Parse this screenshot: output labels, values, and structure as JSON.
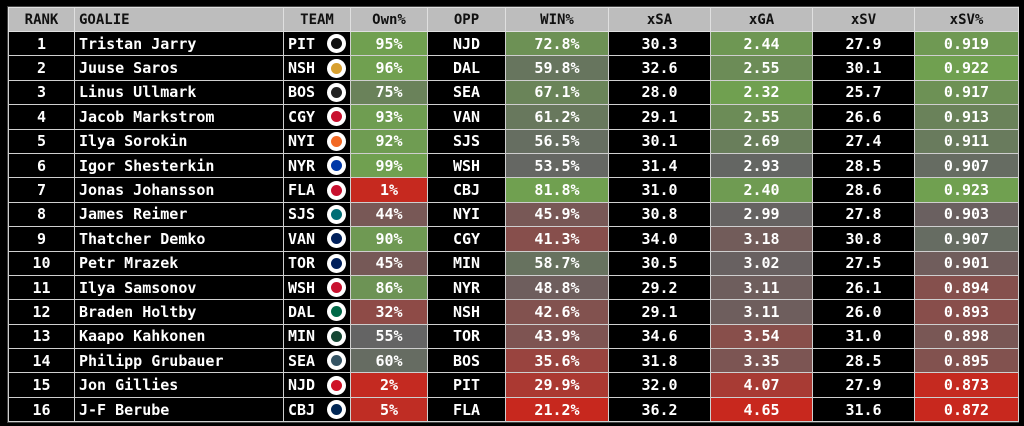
{
  "chart_data": {
    "type": "table",
    "columns": [
      "RANK",
      "GOALIE",
      "TEAM",
      "Own%",
      "OPP",
      "WIN%",
      "xSA",
      "xGA",
      "xSV",
      "xSV%"
    ],
    "rows": [
      [
        "1",
        "Tristan Jarry",
        "PIT",
        "95%",
        "NJD",
        "72.8%",
        "30.3",
        "2.44",
        "27.9",
        "0.919"
      ],
      [
        "2",
        "Juuse Saros",
        "NSH",
        "96%",
        "DAL",
        "59.8%",
        "32.6",
        "2.55",
        "30.1",
        "0.922"
      ],
      [
        "3",
        "Linus Ullmark",
        "BOS",
        "75%",
        "SEA",
        "67.1%",
        "28.0",
        "2.32",
        "25.7",
        "0.917"
      ],
      [
        "4",
        "Jacob Markstrom",
        "CGY",
        "93%",
        "VAN",
        "61.2%",
        "29.1",
        "2.55",
        "26.6",
        "0.913"
      ],
      [
        "5",
        "Ilya Sorokin",
        "NYI",
        "92%",
        "SJS",
        "56.5%",
        "30.1",
        "2.69",
        "27.4",
        "0.911"
      ],
      [
        "6",
        "Igor Shesterkin",
        "NYR",
        "99%",
        "WSH",
        "53.5%",
        "31.4",
        "2.93",
        "28.5",
        "0.907"
      ],
      [
        "7",
        "Jonas Johansson",
        "FLA",
        "1%",
        "CBJ",
        "81.8%",
        "31.0",
        "2.40",
        "28.6",
        "0.923"
      ],
      [
        "8",
        "James Reimer",
        "SJS",
        "44%",
        "NYI",
        "45.9%",
        "30.8",
        "2.99",
        "27.8",
        "0.903"
      ],
      [
        "9",
        "Thatcher Demko",
        "VAN",
        "90%",
        "CGY",
        "41.3%",
        "34.0",
        "3.18",
        "30.8",
        "0.907"
      ],
      [
        "10",
        "Petr Mrazek",
        "TOR",
        "45%",
        "MIN",
        "58.7%",
        "30.5",
        "3.02",
        "27.5",
        "0.901"
      ],
      [
        "11",
        "Ilya Samsonov",
        "WSH",
        "86%",
        "NYR",
        "48.8%",
        "29.2",
        "3.11",
        "26.1",
        "0.894"
      ],
      [
        "12",
        "Braden Holtby",
        "DAL",
        "32%",
        "NSH",
        "42.6%",
        "29.1",
        "3.11",
        "26.0",
        "0.893"
      ],
      [
        "13",
        "Kaapo Kahkonen",
        "MIN",
        "55%",
        "TOR",
        "43.9%",
        "34.6",
        "3.54",
        "31.0",
        "0.898"
      ],
      [
        "14",
        "Philipp Grubauer",
        "SEA",
        "60%",
        "BOS",
        "35.6%",
        "31.8",
        "3.35",
        "28.5",
        "0.895"
      ],
      [
        "15",
        "Jon Gillies",
        "NJD",
        "2%",
        "PIT",
        "29.9%",
        "32.0",
        "4.07",
        "27.9",
        "0.873"
      ],
      [
        "16",
        "J-F Berube",
        "CBJ",
        "5%",
        "FLA",
        "21.2%",
        "36.2",
        "4.65",
        "31.6",
        "0.872"
      ]
    ],
    "team_colors": {
      "PIT": "#111111",
      "NSH": "#d8a030",
      "BOS": "#222222",
      "CGY": "#c8102e",
      "NYI": "#f26924",
      "NYR": "#0038a8",
      "FLA": "#c8102e",
      "SJS": "#006d75",
      "VAN": "#00205b",
      "TOR": "#00205b",
      "WSH": "#c8102e",
      "DAL": "#006847",
      "MIN": "#154734",
      "SEA": "#355464",
      "NJD": "#ce1126",
      "CBJ": "#002654"
    },
    "color_scale": {
      "good": "#70a050",
      "mid": "#646464",
      "bad": "#c8281e"
    }
  }
}
